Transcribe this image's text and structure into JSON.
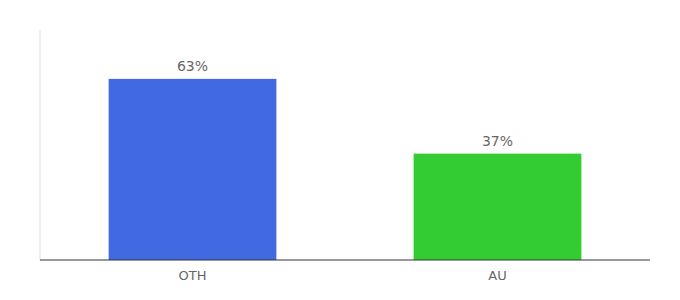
{
  "chart_data": {
    "type": "bar",
    "categories": [
      "OTH",
      "AU"
    ],
    "values": [
      63,
      37
    ],
    "value_labels": [
      "63%",
      "37%"
    ],
    "colors": [
      "#4169e1",
      "#33cc33"
    ],
    "ylim": [
      0,
      80
    ],
    "data_labels": true,
    "tick_labels": "x"
  }
}
